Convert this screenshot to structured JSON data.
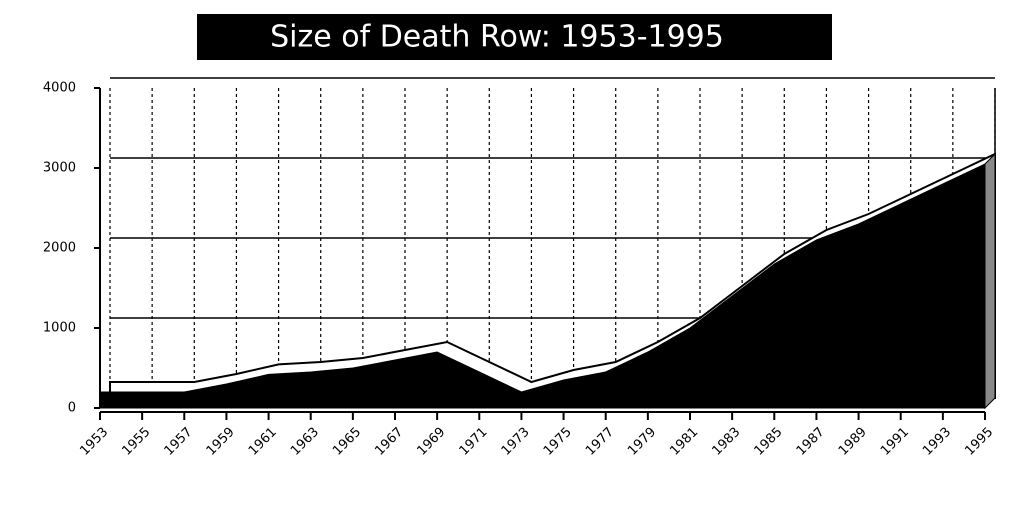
{
  "chart_data": {
    "type": "area",
    "title": "Size of Death Row: 1953-1995",
    "x": [
      1953,
      1955,
      1957,
      1959,
      1961,
      1963,
      1965,
      1967,
      1969,
      1971,
      1973,
      1975,
      1977,
      1979,
      1981,
      1983,
      1985,
      1987,
      1989,
      1991,
      1993,
      1995
    ],
    "values": [
      200,
      200,
      200,
      300,
      420,
      450,
      500,
      600,
      700,
      450,
      200,
      350,
      450,
      700,
      1000,
      1400,
      1800,
      2100,
      2300,
      2550,
      2800,
      3050
    ],
    "color": "#000000",
    "xlim": [
      1953,
      1995
    ],
    "xticks": [
      1953,
      1955,
      1957,
      1959,
      1961,
      1963,
      1965,
      1967,
      1969,
      1971,
      1973,
      1975,
      1977,
      1979,
      1981,
      1983,
      1985,
      1987,
      1989,
      1991,
      1993,
      1995
    ],
    "ylim": [
      0,
      4000
    ],
    "yticks": [
      0,
      1000,
      2000,
      3000,
      4000
    ],
    "grid": true
  }
}
